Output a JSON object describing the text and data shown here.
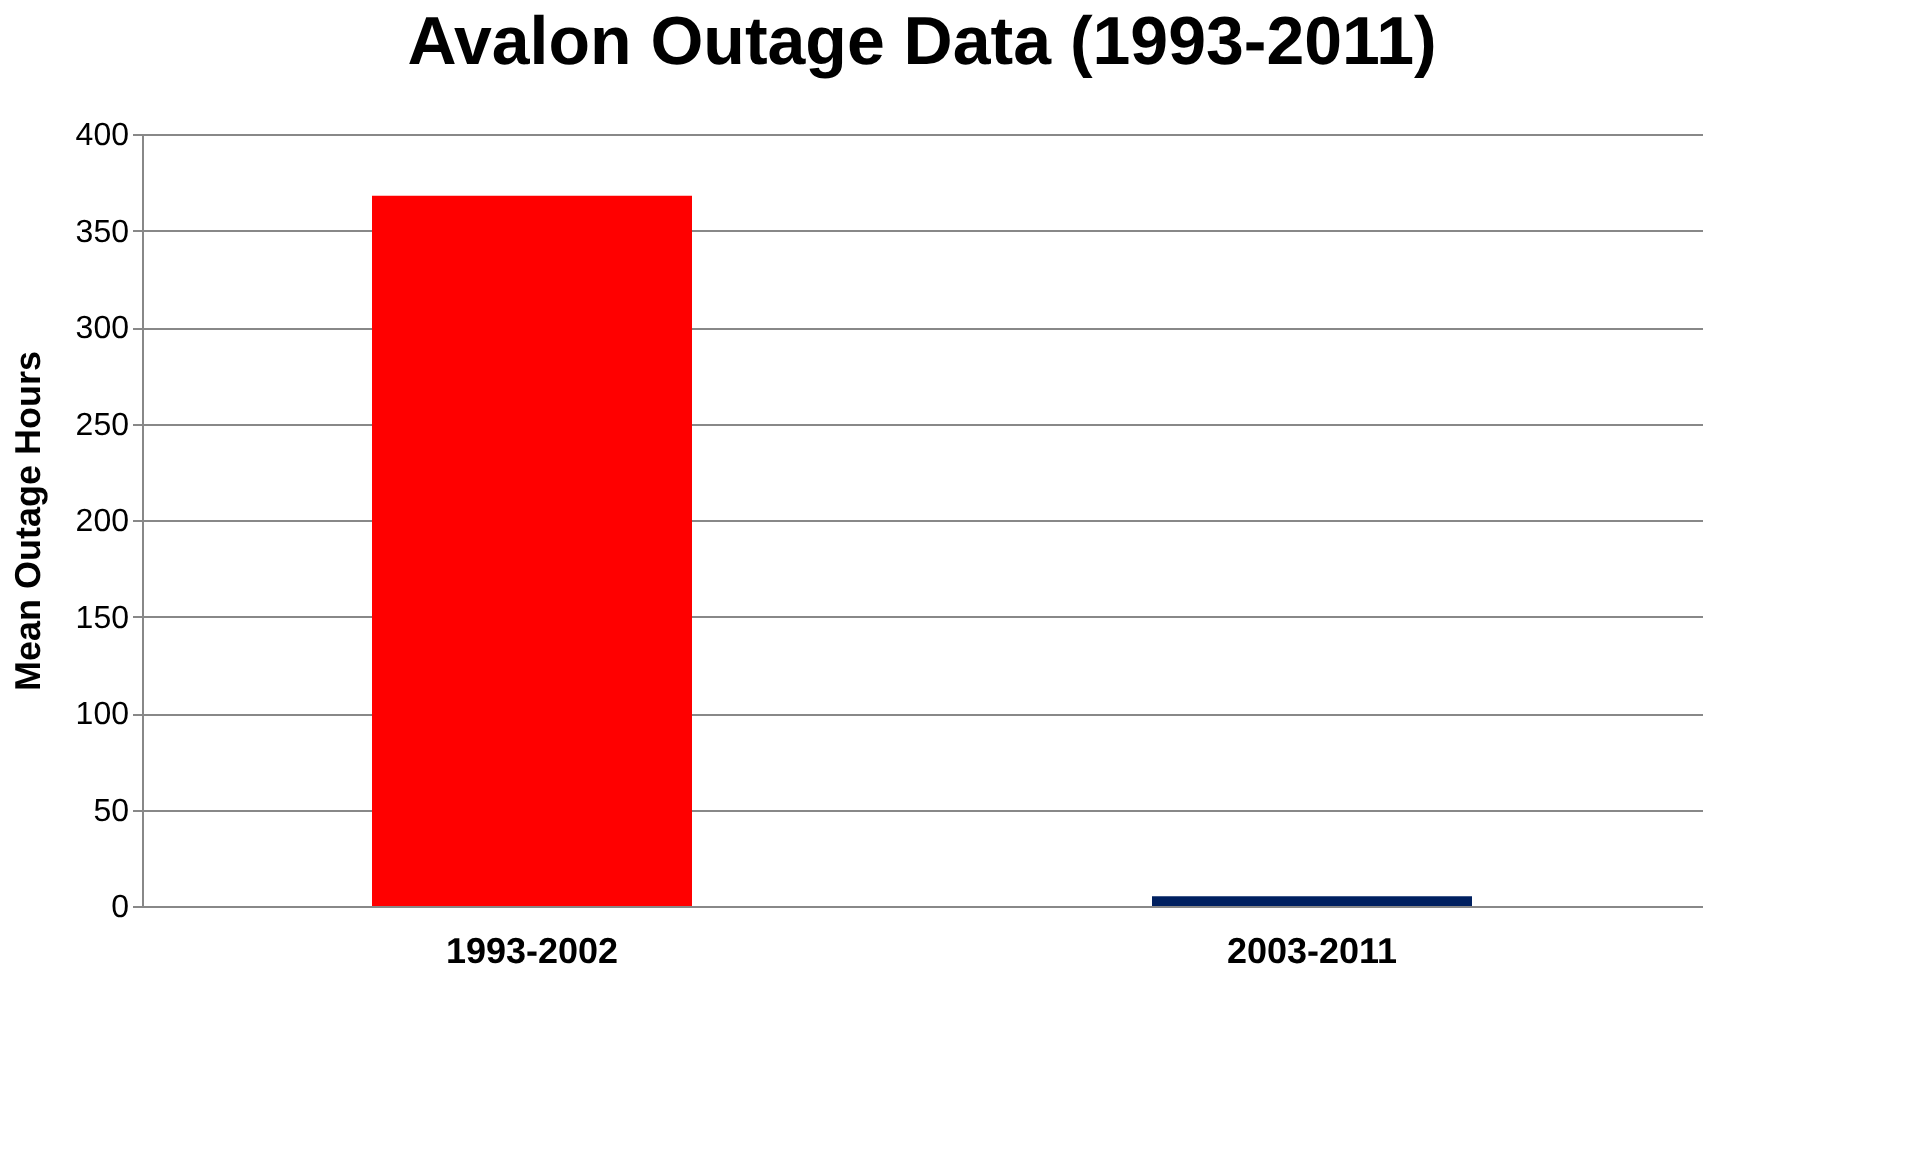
{
  "chart_data": {
    "type": "bar",
    "title": "Avalon Outage Data (1993-2011)",
    "ylabel": "Mean Outage Hours",
    "categories": [
      "1993-2002",
      "2003-2011"
    ],
    "values": [
      368,
      5
    ],
    "colors": [
      "#ff0000",
      "#002060"
    ],
    "ylim": [
      0,
      400
    ],
    "yticks": [
      0,
      50,
      100,
      150,
      200,
      250,
      300,
      350,
      400
    ],
    "grid": "y",
    "legend": false
  }
}
